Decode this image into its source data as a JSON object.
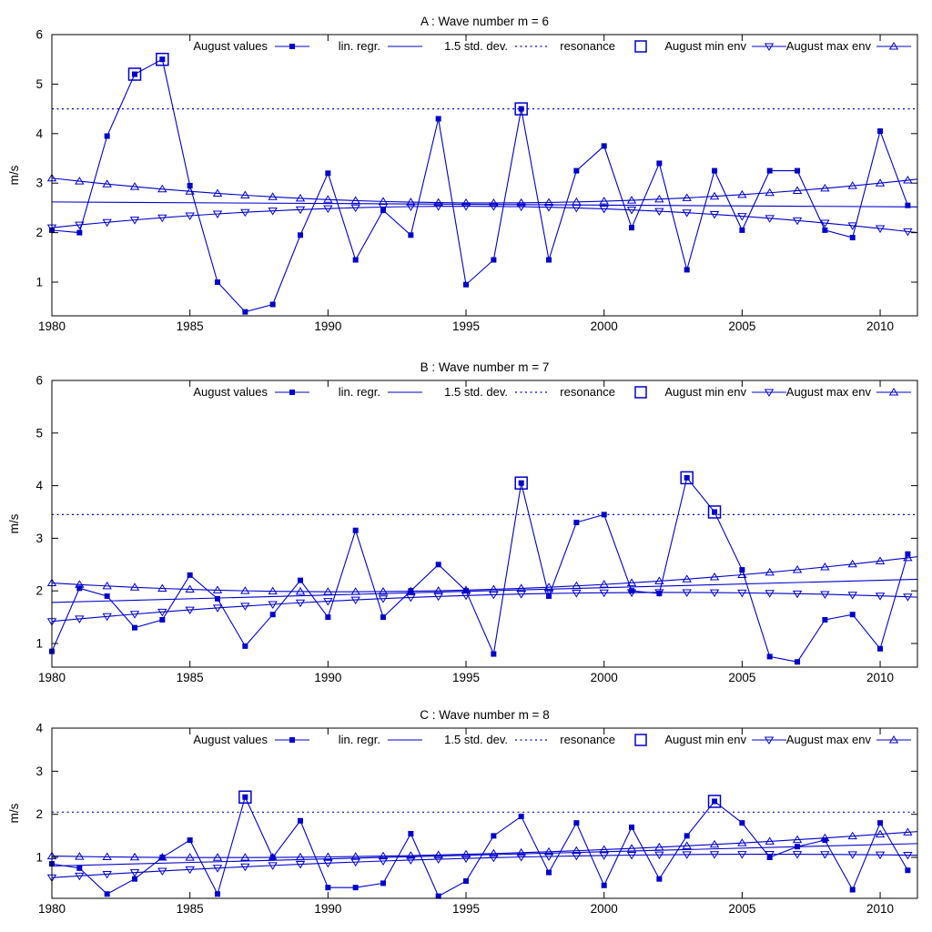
{
  "figure": {
    "background": "#ffffff",
    "accent_color": "#0000cc",
    "text_color": "#000000",
    "legend": {
      "items": [
        {
          "label": "August values",
          "sample": "line-filled-square-icon"
        },
        {
          "label": "lin. regr.",
          "sample": "solid-line-icon"
        },
        {
          "label": "1.5 std. dev.",
          "sample": "dotted-line-icon"
        },
        {
          "label": "resonance",
          "sample": "open-square-icon"
        },
        {
          "label": "August min env",
          "sample": "line-triangle-down-icon"
        },
        {
          "label": "August max env",
          "sample": "line-triangle-up-icon"
        }
      ]
    }
  },
  "chart_data": [
    {
      "type": "line",
      "panel": "A",
      "title": "A : Wave number m = 6",
      "ylabel": "m/s",
      "xlim": [
        1980,
        2011.35
      ],
      "ylim": [
        0.32,
        6
      ],
      "xticks": [
        1980,
        1985,
        1990,
        1995,
        2000,
        2005,
        2010
      ],
      "yticks": [
        1,
        2,
        3,
        4,
        5,
        6
      ],
      "years": [
        1980,
        1981,
        1982,
        1983,
        1984,
        1985,
        1986,
        1987,
        1988,
        1989,
        1990,
        1991,
        1992,
        1993,
        1994,
        1995,
        1996,
        1997,
        1998,
        1999,
        2000,
        2001,
        2002,
        2003,
        2004,
        2005,
        2006,
        2007,
        2008,
        2009,
        2010,
        2011
      ],
      "august_values": [
        2.05,
        2.0,
        3.95,
        5.2,
        5.5,
        2.95,
        1.0,
        0.4,
        0.55,
        1.95,
        3.2,
        1.45,
        2.45,
        1.95,
        4.3,
        0.95,
        1.45,
        4.5,
        1.45,
        3.25,
        3.75,
        2.1,
        3.4,
        1.25,
        3.25,
        2.05,
        3.25,
        3.25,
        2.05,
        1.9,
        4.05,
        2.55
      ],
      "lin_regr": {
        "x": [
          1980,
          2011.35
        ],
        "y": [
          2.62,
          2.52
        ]
      },
      "std_dev_level": 4.5,
      "resonance_years": [
        1983,
        1984,
        1997
      ],
      "min_env": {
        "shape": "quadratic",
        "anchors_x": [
          1980,
          1996,
          2011.35
        ],
        "anchors_y": [
          2.1,
          2.53,
          2.0
        ]
      },
      "max_env": {
        "shape": "quadratic",
        "anchors_x": [
          1980,
          1996,
          2011.35
        ],
        "anchors_y": [
          3.1,
          2.6,
          3.08
        ]
      }
    },
    {
      "type": "line",
      "panel": "B",
      "title": "B : Wave number m = 7",
      "ylabel": "m/s",
      "xlim": [
        1980,
        2011.35
      ],
      "ylim": [
        0.55,
        6
      ],
      "xticks": [
        1980,
        1985,
        1990,
        1995,
        2000,
        2005,
        2010
      ],
      "yticks": [
        1,
        2,
        3,
        4,
        5,
        6
      ],
      "years": [
        1980,
        1981,
        1982,
        1983,
        1984,
        1985,
        1986,
        1987,
        1988,
        1989,
        1990,
        1991,
        1992,
        1993,
        1994,
        1995,
        1996,
        1997,
        1998,
        1999,
        2000,
        2001,
        2002,
        2003,
        2004,
        2005,
        2006,
        2007,
        2008,
        2009,
        2010,
        2011
      ],
      "august_values": [
        0.85,
        2.05,
        1.9,
        1.3,
        1.45,
        2.3,
        1.85,
        0.95,
        1.55,
        2.2,
        1.5,
        3.15,
        1.5,
        2.0,
        2.5,
        2.0,
        0.8,
        4.05,
        1.9,
        3.3,
        3.45,
        2.0,
        1.95,
        4.15,
        3.5,
        2.4,
        0.75,
        0.65,
        1.45,
        1.55,
        0.9,
        2.7
      ],
      "lin_regr": {
        "x": [
          1980,
          2011.35
        ],
        "y": [
          1.78,
          2.22
        ]
      },
      "std_dev_level": 3.45,
      "resonance_years": [
        1997,
        2003,
        2004
      ],
      "min_env": {
        "shape": "quadratic",
        "anchors_x": [
          1980,
          2002,
          2011.35
        ],
        "anchors_y": [
          1.42,
          1.97,
          1.88
        ]
      },
      "max_env": {
        "shape": "quadratic",
        "anchors_x": [
          1980,
          1996,
          2011.35
        ],
        "anchors_y": [
          2.15,
          2.03,
          2.65
        ]
      }
    },
    {
      "type": "line",
      "panel": "C",
      "title": "C : Wave number m = 8",
      "ylabel": "m/s",
      "xlim": [
        1980,
        2011.35
      ],
      "ylim": [
        0.05,
        4
      ],
      "xticks": [
        1980,
        1985,
        1990,
        1995,
        2000,
        2005,
        2010
      ],
      "yticks": [
        1,
        2,
        3,
        4
      ],
      "years": [
        1980,
        1981,
        1982,
        1983,
        1984,
        1985,
        1986,
        1987,
        1988,
        1989,
        1990,
        1991,
        1992,
        1993,
        1994,
        1995,
        1996,
        1997,
        1998,
        1999,
        2000,
        2001,
        2002,
        2003,
        2004,
        2005,
        2006,
        2007,
        2008,
        2009,
        2010,
        2011
      ],
      "august_values": [
        0.85,
        0.75,
        0.15,
        0.5,
        1.0,
        1.4,
        0.15,
        2.4,
        1.0,
        1.85,
        0.3,
        0.3,
        0.4,
        1.55,
        0.1,
        0.45,
        1.5,
        1.95,
        0.65,
        1.8,
        0.35,
        1.7,
        0.5,
        1.5,
        2.3,
        1.8,
        1.0,
        1.25,
        1.4,
        0.25,
        1.8,
        0.7
      ],
      "lin_regr": {
        "x": [
          1980,
          2011.35
        ],
        "y": [
          0.8,
          1.32
        ]
      },
      "std_dev_level": 2.05,
      "resonance_years": [
        1987,
        2004
      ],
      "min_env": {
        "shape": "quadratic",
        "anchors_x": [
          1980,
          2004,
          2011.35
        ],
        "anchors_y": [
          0.53,
          1.07,
          1.05
        ]
      },
      "max_env": {
        "shape": "quadratic",
        "anchors_x": [
          1980,
          1988,
          2011.35
        ],
        "anchors_y": [
          1.03,
          1.0,
          1.6
        ]
      }
    }
  ]
}
